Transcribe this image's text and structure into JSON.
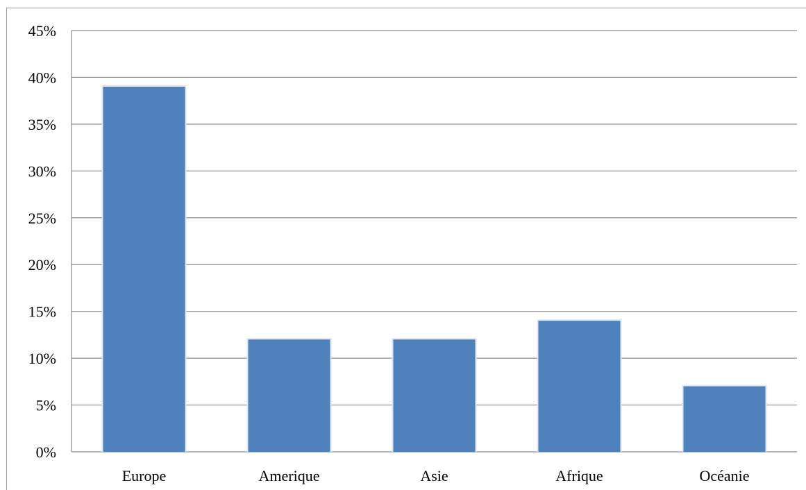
{
  "chart_data": {
    "type": "bar",
    "categories": [
      "Europe",
      "Amerique",
      "Asie",
      "Afrique",
      "Océanie"
    ],
    "values": [
      39,
      12,
      12,
      14,
      7
    ],
    "ylim": [
      0,
      45
    ],
    "ytick_step": 5,
    "ytick_labels": [
      "0%",
      "5%",
      "10%",
      "15%",
      "20%",
      "25%",
      "30%",
      "35%",
      "40%",
      "45%"
    ],
    "title": "",
    "xlabel": "",
    "ylabel": "",
    "grid": true,
    "legend": "none",
    "bar_color": "#4f81bd"
  }
}
